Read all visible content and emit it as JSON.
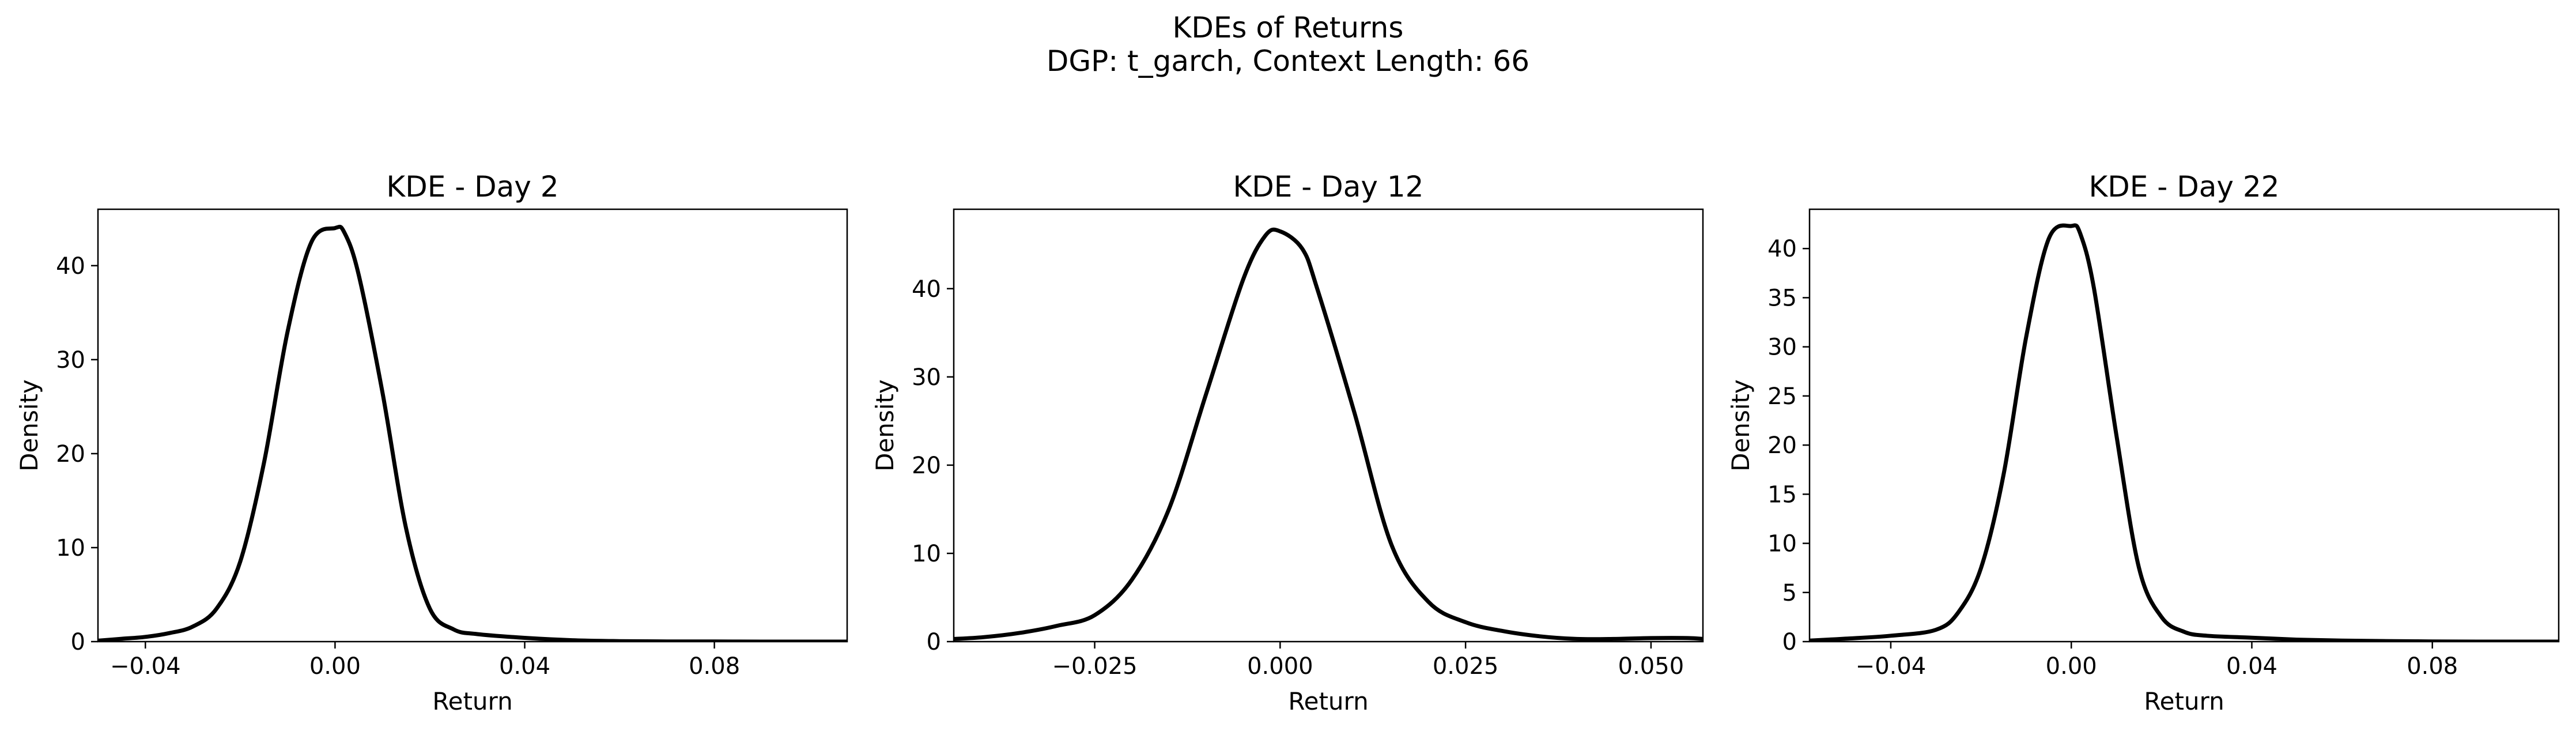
{
  "figure": {
    "title_line1": "KDEs of Returns",
    "title_line2": "DGP: t_garch, Context Length: 66"
  },
  "chart_data": [
    {
      "type": "line",
      "title": "KDE - Day 2",
      "xlabel": "Return",
      "ylabel": "Density",
      "xlim": [
        -0.05,
        0.108
      ],
      "ylim": [
        0,
        46
      ],
      "xticks": [
        -0.04,
        0.0,
        0.04,
        0.08
      ],
      "xtick_labels": [
        "−0.04",
        "0.00",
        "0.04",
        "0.08"
      ],
      "yticks": [
        0,
        10,
        20,
        30,
        40
      ],
      "ytick_labels": [
        "0",
        "10",
        "20",
        "30",
        "40"
      ],
      "grid": false,
      "color": "#000000",
      "series": [
        {
          "x": [
            -0.05,
            -0.045,
            -0.04,
            -0.035,
            -0.03,
            -0.025,
            -0.02,
            -0.015,
            -0.01,
            -0.005,
            0.0,
            0.002,
            0.005,
            0.01,
            0.015,
            0.02,
            0.025,
            0.03,
            0.04,
            0.05,
            0.06,
            0.07,
            0.08,
            0.09,
            0.1,
            0.108
          ],
          "y": [
            0.1,
            0.3,
            0.5,
            0.9,
            1.6,
            3.5,
            8.5,
            19.0,
            33.0,
            42.5,
            44.0,
            43.5,
            39.0,
            26.5,
            12.0,
            3.5,
            1.3,
            0.8,
            0.4,
            0.15,
            0.05,
            0.02,
            0.01,
            0.0,
            0.0,
            0.0
          ]
        }
      ]
    },
    {
      "type": "line",
      "title": "KDE - Day 12",
      "xlabel": "Return",
      "ylabel": "Density",
      "xlim": [
        -0.044,
        0.057
      ],
      "ylim": [
        0,
        49
      ],
      "xticks": [
        -0.025,
        0.0,
        0.025,
        0.05
      ],
      "xtick_labels": [
        "−0.025",
        "0.000",
        "0.025",
        "0.050"
      ],
      "yticks": [
        0,
        10,
        20,
        30,
        40
      ],
      "ytick_labels": [
        "0",
        "10",
        "20",
        "30",
        "40"
      ],
      "grid": false,
      "color": "#000000",
      "series": [
        {
          "x": [
            -0.044,
            -0.04,
            -0.035,
            -0.03,
            -0.025,
            -0.02,
            -0.015,
            -0.01,
            -0.005,
            -0.002,
            0.0,
            0.003,
            0.005,
            0.01,
            0.015,
            0.02,
            0.025,
            0.03,
            0.035,
            0.04,
            0.045,
            0.05,
            0.055,
            0.057
          ],
          "y": [
            0.3,
            0.5,
            1.0,
            1.8,
            3.0,
            7.0,
            15.0,
            28.0,
            41.0,
            46.0,
            46.5,
            44.5,
            40.0,
            26.0,
            11.0,
            4.5,
            2.2,
            1.2,
            0.6,
            0.3,
            0.3,
            0.4,
            0.4,
            0.3
          ]
        }
      ]
    },
    {
      "type": "line",
      "title": "KDE - Day 22",
      "xlabel": "Return",
      "ylabel": "Density",
      "xlim": [
        -0.058,
        0.108
      ],
      "ylim": [
        0,
        44
      ],
      "xticks": [
        -0.04,
        0.0,
        0.04,
        0.08
      ],
      "xtick_labels": [
        "−0.04",
        "0.00",
        "0.04",
        "0.08"
      ],
      "yticks": [
        0,
        5,
        10,
        15,
        20,
        25,
        30,
        35,
        40
      ],
      "ytick_labels": [
        "0",
        "5",
        "10",
        "15",
        "20",
        "25",
        "30",
        "35",
        "40"
      ],
      "grid": false,
      "color": "#000000",
      "series": [
        {
          "x": [
            -0.058,
            -0.05,
            -0.04,
            -0.03,
            -0.025,
            -0.02,
            -0.015,
            -0.01,
            -0.005,
            0.0,
            0.002,
            0.005,
            0.01,
            0.015,
            0.02,
            0.025,
            0.03,
            0.04,
            0.05,
            0.06,
            0.07,
            0.08,
            0.09,
            0.1,
            0.108
          ],
          "y": [
            0.1,
            0.3,
            0.6,
            1.2,
            3.0,
            7.5,
            17.0,
            31.0,
            41.0,
            42.3,
            41.5,
            36.0,
            21.0,
            7.5,
            2.5,
            1.0,
            0.6,
            0.4,
            0.2,
            0.1,
            0.05,
            0.02,
            0.0,
            0.0,
            0.0
          ]
        }
      ]
    }
  ]
}
